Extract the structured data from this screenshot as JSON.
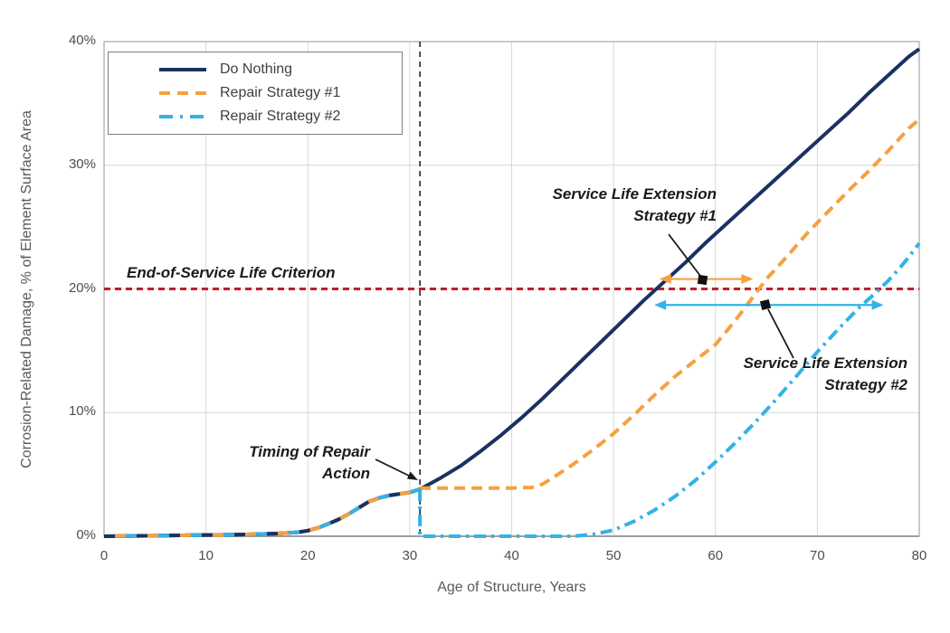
{
  "colors": {
    "do_nothing": "#1C3061",
    "repair1": "#F4A142",
    "repair2": "#33B3E6",
    "eol_line": "#BE1E2D",
    "timing_line": "#262626",
    "grid": "#D9D9D9",
    "plot_border": "#A6A6A6",
    "axis_line": "#9E9E9E",
    "annotation_ink": "#1a1a1a"
  },
  "chart_data": {
    "type": "line",
    "title": "",
    "xlabel": "Age of Structure, Years",
    "ylabel": "Corrosion-Related Damage, % of Element Surface Area",
    "xlim": [
      0,
      80
    ],
    "ylim": [
      0,
      40
    ],
    "x_ticks": [
      0,
      10,
      20,
      30,
      40,
      50,
      60,
      70,
      80
    ],
    "y_ticks": [
      0,
      10,
      20,
      30,
      40
    ],
    "y_tick_suffix": "%",
    "grid": true,
    "legend_position": "top-left",
    "common_points_age_0_to_31": [
      [
        0,
        0
      ],
      [
        3,
        0.03
      ],
      [
        6,
        0.06
      ],
      [
        9,
        0.09
      ],
      [
        12,
        0.12
      ],
      [
        15,
        0.17
      ],
      [
        17,
        0.22
      ],
      [
        19,
        0.32
      ],
      [
        20,
        0.45
      ],
      [
        21,
        0.68
      ],
      [
        22,
        1.0
      ],
      [
        23,
        1.35
      ],
      [
        24,
        1.8
      ],
      [
        25,
        2.3
      ],
      [
        26,
        2.8
      ],
      [
        27,
        3.1
      ],
      [
        28,
        3.3
      ],
      [
        29,
        3.42
      ],
      [
        30,
        3.55
      ],
      [
        31,
        3.8
      ]
    ],
    "series": [
      {
        "name": "Do Nothing",
        "color": "#1C3061",
        "style": "solid",
        "points": [
          [
            0,
            0
          ],
          [
            3,
            0.03
          ],
          [
            6,
            0.06
          ],
          [
            9,
            0.09
          ],
          [
            12,
            0.12
          ],
          [
            15,
            0.17
          ],
          [
            17,
            0.22
          ],
          [
            19,
            0.32
          ],
          [
            20,
            0.45
          ],
          [
            21,
            0.68
          ],
          [
            22,
            1.0
          ],
          [
            23,
            1.35
          ],
          [
            24,
            1.8
          ],
          [
            25,
            2.3
          ],
          [
            26,
            2.8
          ],
          [
            27,
            3.1
          ],
          [
            28,
            3.3
          ],
          [
            29,
            3.42
          ],
          [
            30,
            3.55
          ],
          [
            31,
            3.8
          ],
          [
            33,
            4.7
          ],
          [
            35,
            5.7
          ],
          [
            37,
            6.9
          ],
          [
            39,
            8.2
          ],
          [
            41,
            9.6
          ],
          [
            43,
            11.1
          ],
          [
            45,
            12.7
          ],
          [
            47,
            14.3
          ],
          [
            49,
            15.9
          ],
          [
            51,
            17.5
          ],
          [
            53,
            19.1
          ],
          [
            55,
            20.6
          ],
          [
            57,
            22.1
          ],
          [
            59,
            23.7
          ],
          [
            61,
            25.2
          ],
          [
            63,
            26.7
          ],
          [
            65,
            28.2
          ],
          [
            67,
            29.7
          ],
          [
            69,
            31.2
          ],
          [
            71,
            32.7
          ],
          [
            73,
            34.2
          ],
          [
            75,
            35.8
          ],
          [
            77,
            37.3
          ],
          [
            79,
            38.8
          ],
          [
            80,
            39.4
          ]
        ]
      },
      {
        "name": "Repair Strategy #1",
        "color": "#F4A142",
        "style": "dashed",
        "points": [
          [
            31,
            3.9
          ],
          [
            34,
            3.9
          ],
          [
            37,
            3.9
          ],
          [
            40,
            3.9
          ],
          [
            42,
            3.95
          ],
          [
            43,
            4.2
          ],
          [
            44,
            4.7
          ],
          [
            46,
            5.8
          ],
          [
            48,
            7.0
          ],
          [
            50,
            8.3
          ],
          [
            52,
            9.8
          ],
          [
            54,
            11.4
          ],
          [
            56,
            12.9
          ],
          [
            58,
            14.2
          ],
          [
            60,
            15.5
          ],
          [
            62,
            17.5
          ],
          [
            64,
            19.7
          ],
          [
            65,
            20.8
          ],
          [
            67,
            22.6
          ],
          [
            69,
            24.5
          ],
          [
            71,
            26.2
          ],
          [
            73,
            27.9
          ],
          [
            75,
            29.5
          ],
          [
            77,
            31.2
          ],
          [
            79,
            33.0
          ],
          [
            80,
            33.7
          ]
        ]
      },
      {
        "name": "Repair Strategy #2",
        "color": "#33B3E6",
        "style": "dashdot",
        "points": [
          [
            31,
            3.8
          ],
          [
            31,
            0
          ],
          [
            34,
            0
          ],
          [
            38,
            0
          ],
          [
            42,
            0
          ],
          [
            46,
            0
          ],
          [
            48,
            0.15
          ],
          [
            50,
            0.5
          ],
          [
            52,
            1.2
          ],
          [
            54,
            2.1
          ],
          [
            56,
            3.2
          ],
          [
            58,
            4.5
          ],
          [
            60,
            6.0
          ],
          [
            62,
            7.6
          ],
          [
            64,
            9.3
          ],
          [
            66,
            11.1
          ],
          [
            68,
            13.0
          ],
          [
            70,
            14.9
          ],
          [
            72,
            16.7
          ],
          [
            74,
            18.4
          ],
          [
            76,
            19.9
          ],
          [
            77,
            20.7
          ],
          [
            78,
            21.6
          ],
          [
            79,
            22.6
          ],
          [
            80,
            23.7
          ]
        ]
      }
    ],
    "reference_lines": [
      {
        "orientation": "horizontal",
        "value": 20,
        "color": "#BE1E2D",
        "style": "dashed"
      },
      {
        "orientation": "vertical",
        "value": 31,
        "color": "#262626",
        "style": "dashed"
      }
    ],
    "extension_arrows": [
      {
        "name": "strategy1-extension-arrow",
        "color": "#F4A142",
        "y_pct": 20.8,
        "from_age": 54.5,
        "to_age": 63.7
      },
      {
        "name": "strategy2-extension-arrow",
        "color": "#33B3E6",
        "y_pct": 18.7,
        "from_age": 54.0,
        "to_age": 76.5
      }
    ]
  },
  "annotations": {
    "end_of_service": "End-of-Service Life Criterion",
    "sle1_line1": "Service Life Extension",
    "sle1_line2": "Strategy #1",
    "sle2_line1": "Service Life Extension",
    "sle2_line2": "Strategy #2",
    "timing_line1": "Timing of Repair",
    "timing_line2": "Action"
  },
  "legend": {
    "items": [
      "Do Nothing",
      "Repair Strategy #1",
      "Repair Strategy #2"
    ]
  }
}
